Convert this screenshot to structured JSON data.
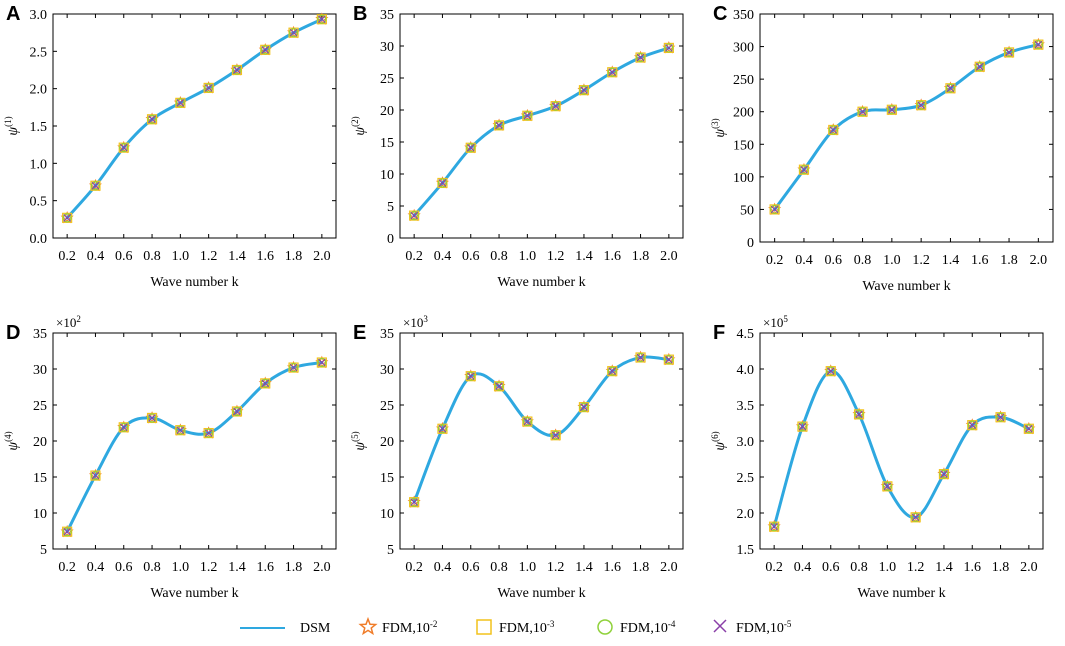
{
  "chart_data": [
    {
      "panel": "A",
      "type": "line",
      "ylabel": "ψ",
      "ylabel_sup": "(1)",
      "multiplier": "",
      "xlabel": "Wave number k",
      "x": [
        0.2,
        0.4,
        0.6,
        0.8,
        1.0,
        1.2,
        1.4,
        1.6,
        1.8,
        2.0
      ],
      "x_ticks": [
        "0.2",
        "0.4",
        "0.6",
        "0.8",
        "1.0",
        "1.2",
        "1.4",
        "1.6",
        "1.8",
        "2.0"
      ],
      "xlim": [
        0.1,
        2.1
      ],
      "ylim": [
        0,
        3.0
      ],
      "y_ticks": [
        0,
        0.5,
        1.0,
        1.5,
        2.0,
        2.5,
        3.0
      ],
      "y_tick_labels": [
        "0.0",
        "0.5",
        "1.0",
        "1.5",
        "2.0",
        "2.5",
        "3.0"
      ],
      "values": [
        0.27,
        0.7,
        1.21,
        1.59,
        1.81,
        2.01,
        2.25,
        2.52,
        2.75,
        2.93
      ]
    },
    {
      "panel": "B",
      "type": "line",
      "ylabel": "ψ",
      "ylabel_sup": "(2)",
      "multiplier": "",
      "xlabel": "Wave number k",
      "x": [
        0.2,
        0.4,
        0.6,
        0.8,
        1.0,
        1.2,
        1.4,
        1.6,
        1.8,
        2.0
      ],
      "x_ticks": [
        "0.2",
        "0.4",
        "0.6",
        "0.8",
        "1.0",
        "1.2",
        "1.4",
        "1.6",
        "1.8",
        "2.0"
      ],
      "xlim": [
        0.1,
        2.1
      ],
      "ylim": [
        0,
        35
      ],
      "y_ticks": [
        0,
        5,
        10,
        15,
        20,
        25,
        30,
        35
      ],
      "y_tick_labels": [
        "0",
        "5",
        "10",
        "15",
        "20",
        "25",
        "30",
        "35"
      ],
      "values": [
        3.5,
        8.6,
        14.1,
        17.6,
        19.1,
        20.6,
        23.1,
        25.9,
        28.2,
        29.7
      ]
    },
    {
      "panel": "C",
      "type": "line",
      "ylabel": "ψ",
      "ylabel_sup": "(3)",
      "multiplier": "",
      "xlabel": "Wave number k",
      "x": [
        0.2,
        0.4,
        0.6,
        0.8,
        1.0,
        1.2,
        1.4,
        1.6,
        1.8,
        2.0
      ],
      "x_ticks": [
        "0.2",
        "0.4",
        "0.6",
        "0.8",
        "1.0",
        "1.2",
        "1.4",
        "1.6",
        "1.8",
        "2.0"
      ],
      "xlim": [
        0.1,
        2.1
      ],
      "ylim": [
        0,
        350
      ],
      "y_ticks": [
        0,
        50,
        100,
        150,
        200,
        250,
        300,
        350
      ],
      "y_tick_labels": [
        "0",
        "50",
        "100",
        "150",
        "200",
        "250",
        "300",
        "350"
      ],
      "values": [
        50,
        111,
        172,
        200,
        203,
        210,
        236,
        269,
        291,
        303
      ]
    },
    {
      "panel": "D",
      "type": "line",
      "ylabel": "ψ",
      "ylabel_sup": "(4)",
      "multiplier": "×10",
      "multiplier_exp": "2",
      "xlabel": "Wave number k",
      "x": [
        0.2,
        0.4,
        0.6,
        0.8,
        1.0,
        1.2,
        1.4,
        1.6,
        1.8,
        2.0
      ],
      "x_ticks": [
        "0.2",
        "0.4",
        "0.6",
        "0.8",
        "1.0",
        "1.2",
        "1.4",
        "1.6",
        "1.8",
        "2.0"
      ],
      "xlim": [
        0.1,
        2.1
      ],
      "ylim": [
        5,
        35
      ],
      "y_ticks": [
        5,
        10,
        15,
        20,
        25,
        30,
        35
      ],
      "y_tick_labels": [
        "5",
        "10",
        "15",
        "20",
        "25",
        "30",
        "35"
      ],
      "values": [
        7.4,
        15.2,
        21.9,
        23.2,
        21.5,
        21.1,
        24.1,
        28.0,
        30.2,
        30.9
      ]
    },
    {
      "panel": "E",
      "type": "line",
      "ylabel": "ψ",
      "ylabel_sup": "(5)",
      "multiplier": "×10",
      "multiplier_exp": "3",
      "xlabel": "Wave number k",
      "x": [
        0.2,
        0.4,
        0.6,
        0.8,
        1.0,
        1.2,
        1.4,
        1.6,
        1.8,
        2.0
      ],
      "x_ticks": [
        "0.2",
        "0.4",
        "0.6",
        "0.8",
        "1.0",
        "1.2",
        "1.4",
        "1.6",
        "1.8",
        "2.0"
      ],
      "xlim": [
        0.1,
        2.1
      ],
      "ylim": [
        5,
        35
      ],
      "y_ticks": [
        5,
        10,
        15,
        20,
        25,
        30,
        35
      ],
      "y_tick_labels": [
        "5",
        "10",
        "15",
        "20",
        "25",
        "30",
        "35"
      ],
      "values": [
        11.5,
        21.7,
        29.0,
        27.6,
        22.7,
        20.8,
        24.7,
        29.7,
        31.6,
        31.3
      ]
    },
    {
      "panel": "F",
      "type": "line",
      "ylabel": "ψ",
      "ylabel_sup": "(6)",
      "multiplier": "×10",
      "multiplier_exp": "5",
      "xlabel": "Wave number k",
      "x": [
        0.2,
        0.4,
        0.6,
        0.8,
        1.0,
        1.2,
        1.4,
        1.6,
        1.8,
        2.0
      ],
      "x_ticks": [
        "0.2",
        "0.4",
        "0.6",
        "0.8",
        "1.0",
        "1.2",
        "1.4",
        "1.6",
        "1.8",
        "2.0"
      ],
      "xlim": [
        0.1,
        2.1
      ],
      "ylim": [
        1.5,
        4.5
      ],
      "y_ticks": [
        1.5,
        2.0,
        2.5,
        3.0,
        3.5,
        4.0,
        4.5
      ],
      "y_tick_labels": [
        "1.5",
        "2.0",
        "2.5",
        "3.0",
        "3.5",
        "4.0",
        "4.5"
      ],
      "values": [
        1.81,
        3.2,
        3.97,
        3.37,
        2.37,
        1.94,
        2.54,
        3.22,
        3.33,
        3.17
      ]
    }
  ],
  "legend": [
    {
      "label": "DSM",
      "label_sup": "",
      "marker": "line",
      "color": "#2ea8e0"
    },
    {
      "label": "FDM,10",
      "label_sup": "-2",
      "marker": "star",
      "color": "#f07c28"
    },
    {
      "label": "FDM,10",
      "label_sup": "-3",
      "marker": "square",
      "color": "#f2c21c"
    },
    {
      "label": "FDM,10",
      "label_sup": "-4",
      "marker": "circle",
      "color": "#8fd13a"
    },
    {
      "label": "FDM,10",
      "label_sup": "-5",
      "marker": "cross",
      "color": "#8a3fa8"
    }
  ],
  "colors": {
    "line": "#2ea8e0",
    "star": "#f07c28",
    "square": "#f2c21c",
    "circle": "#8fd13a",
    "cross": "#8a3fa8",
    "axis": "#000000"
  }
}
